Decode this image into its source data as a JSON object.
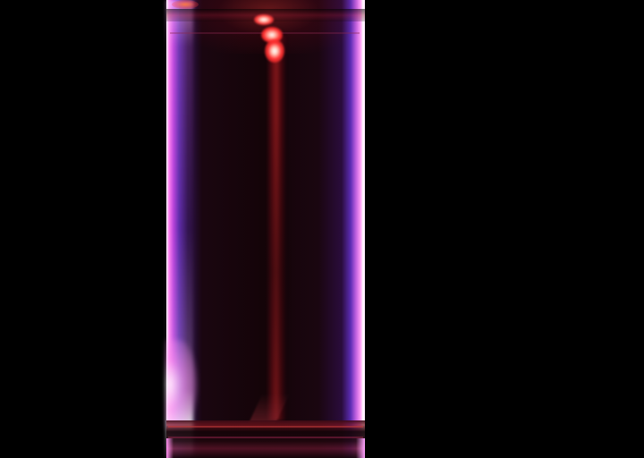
{
  "image": {
    "subject": "glowing-cylinder",
    "colors": {
      "background": "#000000",
      "edge_glow": "#ff7cf0",
      "inner_violet": "#5a2aa8",
      "interior": "#140408",
      "streak_red": "#dc2828",
      "highlight": "#ffffff"
    }
  }
}
